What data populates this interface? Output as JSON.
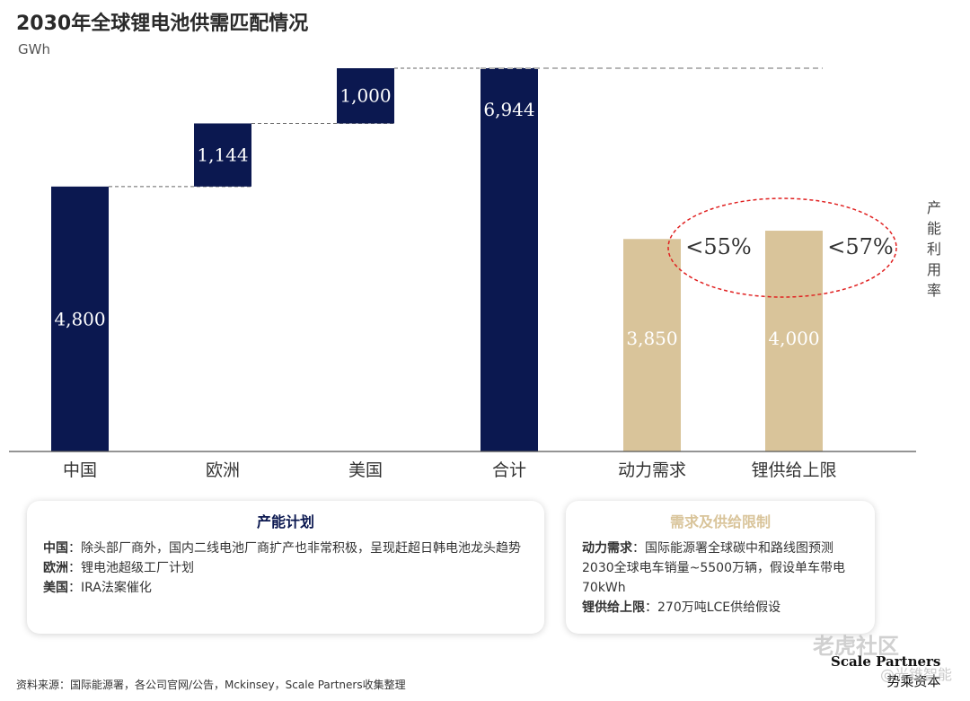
{
  "header": {
    "title": "2030年全球锂电池供需匹配情况",
    "unit": "GWh"
  },
  "colors": {
    "navy": "#0b1850",
    "tan": "#d9c49a",
    "connector": "#666666",
    "util_line": "#b5b5b5",
    "ellipse": "#e02020"
  },
  "chart_data": {
    "type": "bar",
    "subtype": "waterfall",
    "categories": [
      "中国",
      "欧洲",
      "美国",
      "合计",
      "动力需求",
      "锂供给上限"
    ],
    "bars": [
      {
        "category": "中国",
        "value": 4800,
        "base": 0,
        "label": "4,800",
        "color": "navy"
      },
      {
        "category": "欧洲",
        "value": 1144,
        "base": 4800,
        "label": "1,144",
        "color": "navy"
      },
      {
        "category": "美国",
        "value": 1000,
        "base": 5944,
        "label": "1,000",
        "color": "navy"
      },
      {
        "category": "合计",
        "value": 6944,
        "base": 0,
        "label": "6,944",
        "color": "navy"
      },
      {
        "category": "动力需求",
        "value": 3850,
        "base": 0,
        "label": "3,850",
        "color": "tan"
      },
      {
        "category": "锂供给上限",
        "value": 4000,
        "base": 0,
        "label": "4,000",
        "color": "tan"
      }
    ],
    "utilization": [
      {
        "category": "动力需求",
        "label": "<55%"
      },
      {
        "category": "锂供给上限",
        "label": "<57%"
      }
    ],
    "utilization_axis_label": "产能利用率",
    "ylabel": "GWh",
    "ylim": [
      0,
      6944
    ],
    "grid": false,
    "legend": "none"
  },
  "cards": {
    "plan": {
      "title": "产能计划",
      "items": [
        {
          "key": "中国",
          "text": "：除头部厂商外，国内二线电池厂商扩产也非常积极，呈现赶超日韩电池龙头趋势"
        },
        {
          "key": "欧洲",
          "text": "：锂电池超级工厂计划"
        },
        {
          "key": "美国",
          "text": "：IRA法案催化"
        }
      ]
    },
    "limits": {
      "title": "需求及供给限制",
      "items": [
        {
          "key": "动力需求",
          "text": "：国际能源署全球碳中和路线图预测2030全球电车销量~5500万辆，假设单车带电70kWh"
        },
        {
          "key": "锂供给上限",
          "text": "：270万吨LCE供给假设"
        }
      ]
    }
  },
  "footer": {
    "source": "资料来源：国际能源署，各公司官网/公告，Mckinsey，Scale Partners收集整理",
    "brand_en": "Scale Partners",
    "brand_cn": "势乘资本",
    "watermark": "老虎社区",
    "watermark2": "@光锥智能"
  }
}
